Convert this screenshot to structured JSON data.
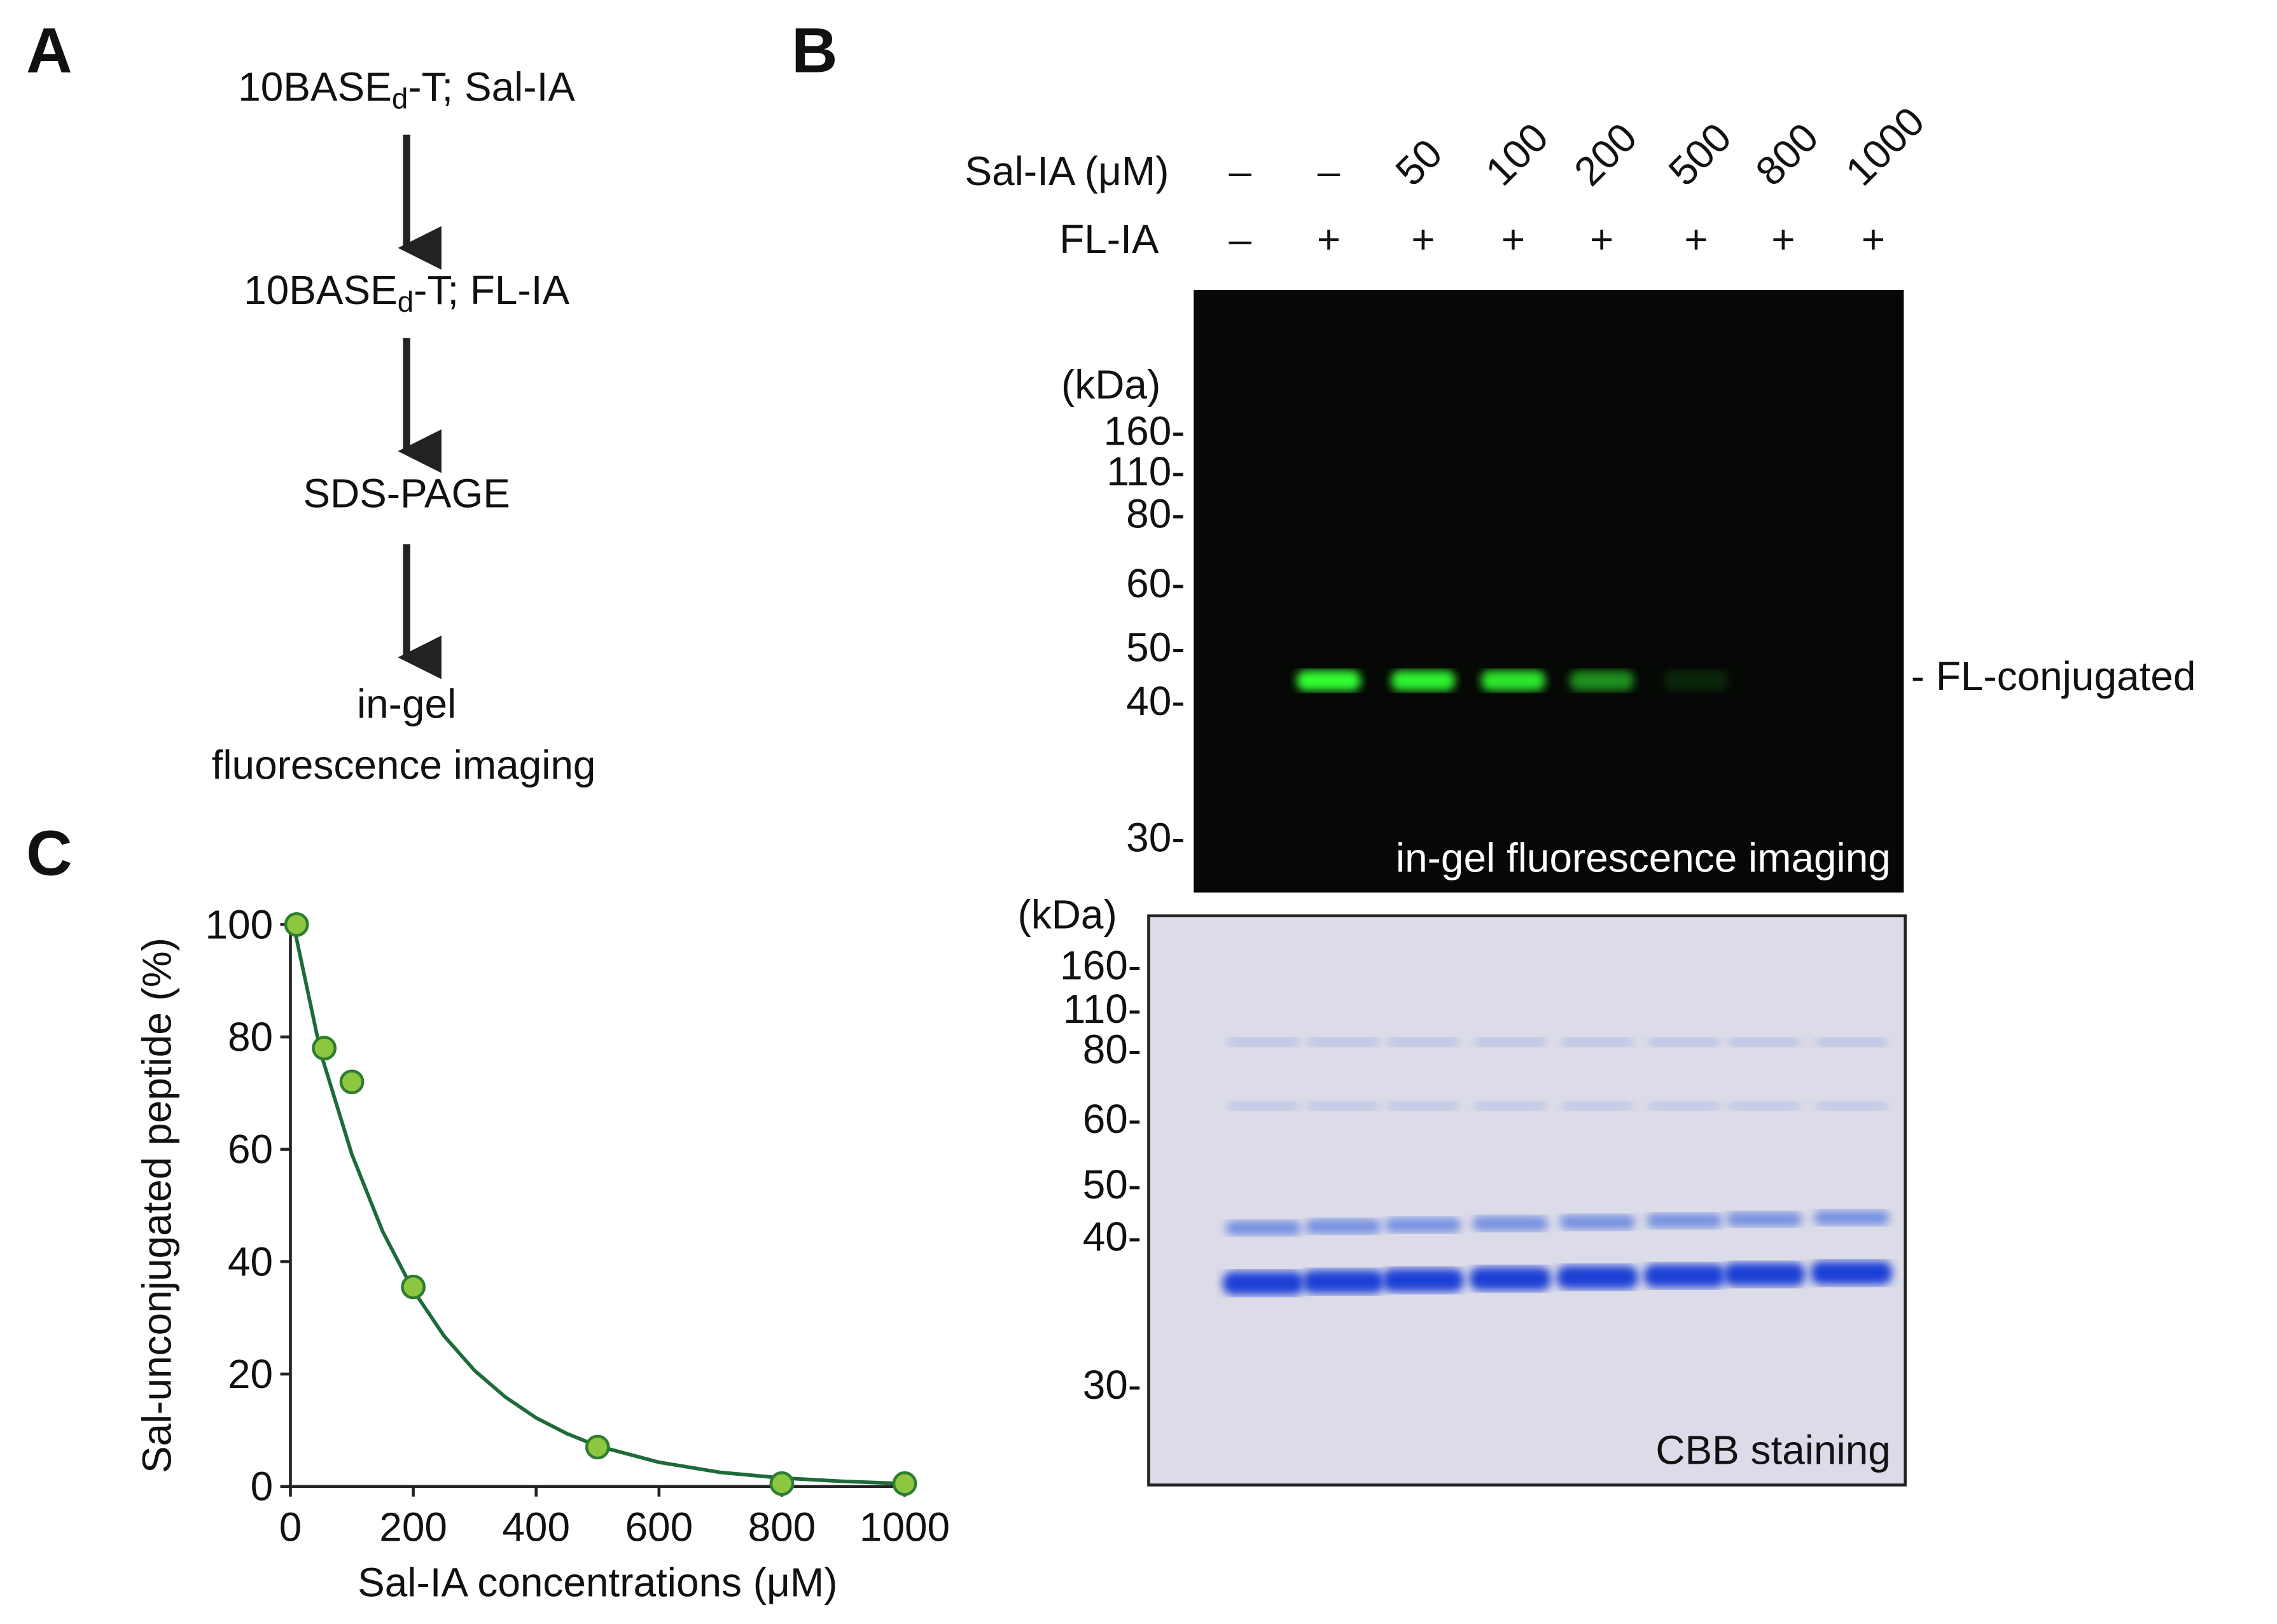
{
  "panel_a": {
    "label": "A",
    "steps": [
      {
        "main": "10BASE",
        "sub": "d",
        "rest": "-T; Sal-IA"
      },
      {
        "main": "10BASE",
        "sub": "d",
        "rest": "-T; FL-IA"
      },
      {
        "main": "SDS-PAGE"
      },
      {
        "main": "in-gel",
        "rest": "fluorescence imaging"
      }
    ]
  },
  "panel_b": {
    "label": "B",
    "row_labels": [
      "Sal-IA (μM)",
      "FL-IA"
    ],
    "sal_ia": [
      "–",
      "–",
      "50",
      "100",
      "200",
      "500",
      "800",
      "1000"
    ],
    "fl_ia": [
      "–",
      "+",
      "+",
      "+",
      "+",
      "+",
      "+",
      "+"
    ],
    "fluorescence_gel": {
      "unit": "(kDa)",
      "markers": [
        "160-",
        "110-",
        "80-",
        "60-",
        "50-",
        "40-",
        "30-"
      ],
      "caption": "in-gel fluorescence imaging",
      "band_label": "- FL-conjugated"
    },
    "cbb_gel": {
      "unit": "(kDa)",
      "markers": [
        "160-",
        "110-",
        "80-",
        "60-",
        "50-",
        "40-",
        "30-"
      ],
      "caption": "CBB staining"
    }
  },
  "panel_c": {
    "label": "C"
  },
  "chart_data": {
    "type": "scatter",
    "x_label": "Sal-IA concentrations (μM)",
    "y_label": "Sal-unconjugated peptide (%)",
    "xlim": [
      0,
      1000
    ],
    "ylim": [
      0,
      100
    ],
    "xticks": [
      0,
      200,
      400,
      600,
      800,
      1000
    ],
    "yticks": [
      0,
      20,
      40,
      60,
      80,
      100
    ],
    "points": {
      "color": "#8dc63f",
      "edge": "#2e7d32",
      "x": [
        10,
        55,
        100,
        200,
        500,
        800,
        1000
      ],
      "values": [
        100,
        78,
        72,
        35.5,
        7,
        0.5,
        0.5
      ]
    },
    "fit": {
      "color": "#1e6b3a",
      "x": [
        5,
        50,
        100,
        150,
        200,
        250,
        300,
        350,
        400,
        450,
        500,
        600,
        700,
        800,
        900,
        1000
      ],
      "values": [
        100,
        76.9,
        59.1,
        45.4,
        34.9,
        26.8,
        20.6,
        15.9,
        12.2,
        9.4,
        7.2,
        4.3,
        2.5,
        1.5,
        0.9,
        0.5
      ]
    }
  }
}
